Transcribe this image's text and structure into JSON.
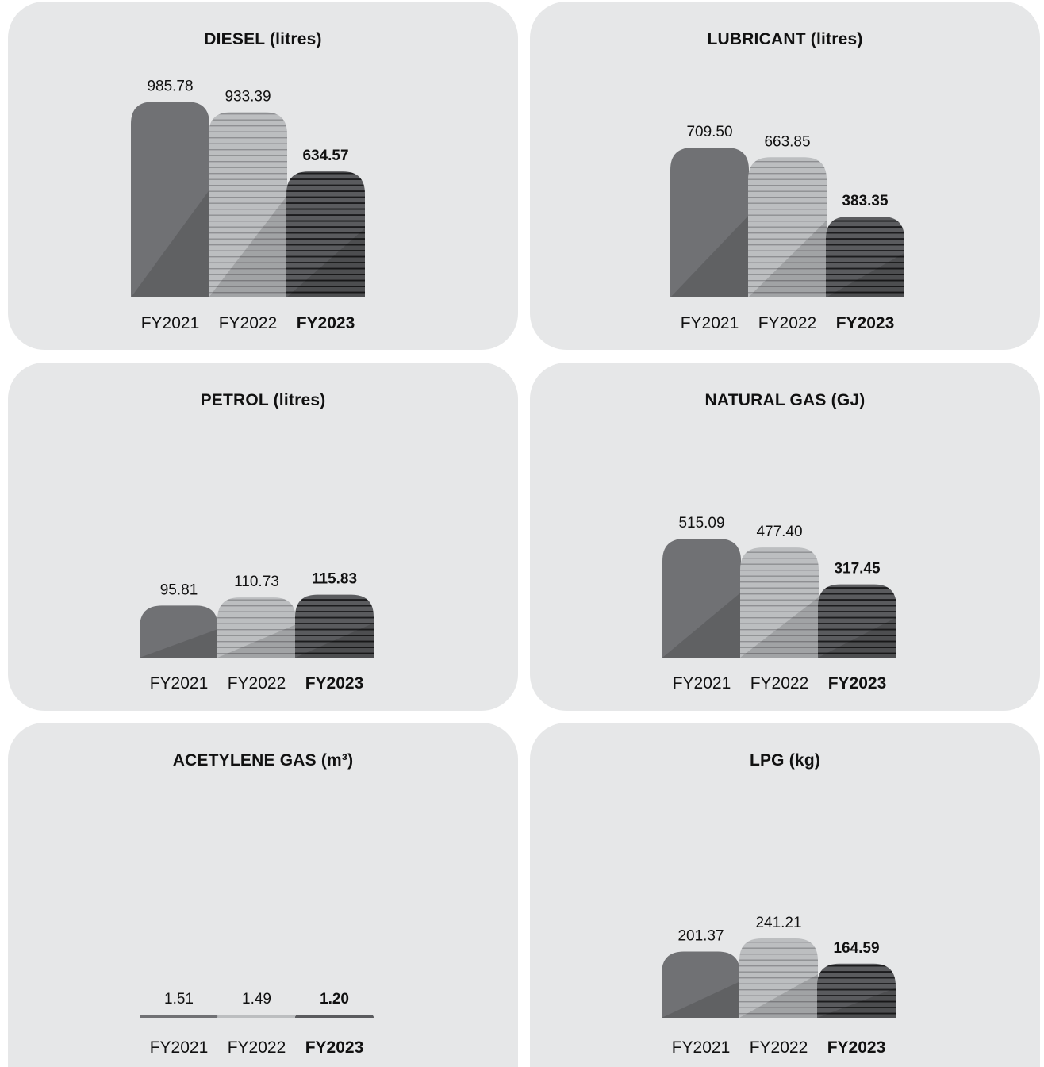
{
  "colors": {
    "panel_bg": "#e6e7e8",
    "fy2021_bar": "#6d6e71",
    "fy2022_bar": "#bcbec0",
    "fy2023_bar": "#3a3a3c",
    "text": "#111111"
  },
  "chart_data": [
    {
      "type": "bar",
      "title": "DIESEL (litres)",
      "categories": [
        "FY2021",
        "FY2022",
        "FY2023"
      ],
      "values": [
        985.78,
        933.39,
        634.57
      ],
      "value_labels": [
        "985.78",
        "933.39",
        "634.57"
      ],
      "highlight": "FY2023"
    },
    {
      "type": "bar",
      "title": "LUBRICANT (litres)",
      "categories": [
        "FY2021",
        "FY2022",
        "FY2023"
      ],
      "values": [
        709.5,
        663.85,
        383.35
      ],
      "value_labels": [
        "709.50",
        "663.85",
        "383.35"
      ],
      "highlight": "FY2023"
    },
    {
      "type": "bar",
      "title": "PETROL (litres)",
      "categories": [
        "FY2021",
        "FY2022",
        "FY2023"
      ],
      "values": [
        95.81,
        110.73,
        115.83
      ],
      "value_labels": [
        "95.81",
        "110.73",
        "115.83"
      ],
      "highlight": "FY2023"
    },
    {
      "type": "bar",
      "title": "NATURAL GAS (GJ)",
      "categories": [
        "FY2021",
        "FY2022",
        "FY2023"
      ],
      "values": [
        515.09,
        477.4,
        317.45
      ],
      "value_labels": [
        "515.09",
        "477.40",
        "317.45"
      ],
      "highlight": "FY2023"
    },
    {
      "type": "bar",
      "title": "ACETYLENE GAS (m³)",
      "categories": [
        "FY2021",
        "FY2022",
        "FY2023"
      ],
      "values": [
        1.51,
        1.49,
        1.2
      ],
      "value_labels": [
        "1.51",
        "1.49",
        "1.20"
      ],
      "highlight": "FY2023"
    },
    {
      "type": "bar",
      "title": "LPG (kg)",
      "categories": [
        "FY2021",
        "FY2022",
        "FY2023"
      ],
      "values": [
        201.37,
        241.21,
        164.59
      ],
      "value_labels": [
        "201.37",
        "241.21",
        "164.59"
      ],
      "highlight": "FY2023"
    }
  ]
}
